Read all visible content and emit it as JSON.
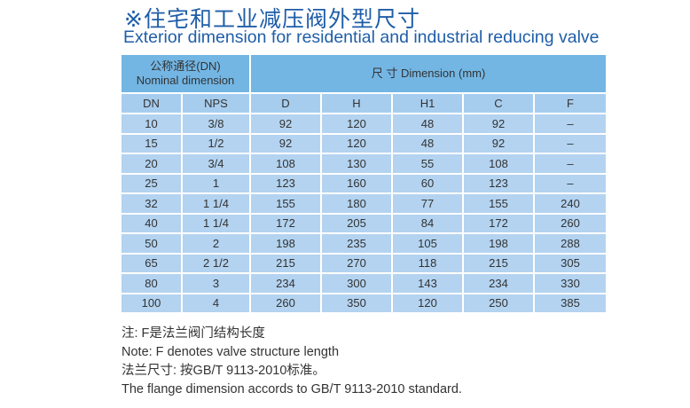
{
  "title": "※住宅和工业减压阀外型尺寸",
  "subtitle": "Exterior dimension for residential and industrial reducing valve",
  "table": {
    "group_nominal_cn": "公称通径(DN)",
    "group_nominal_en": "Nominal dimension",
    "group_dimension": "尺 寸 Dimension  (mm)",
    "columns": [
      "DN",
      "NPS",
      "D",
      "H",
      "H1",
      "C",
      "F"
    ],
    "rows": [
      [
        "10",
        "3/8",
        "92",
        "120",
        "48",
        "92",
        "–"
      ],
      [
        "15",
        "1/2",
        "92",
        "120",
        "48",
        "92",
        "–"
      ],
      [
        "20",
        "3/4",
        "108",
        "130",
        "55",
        "108",
        "–"
      ],
      [
        "25",
        "1",
        "123",
        "160",
        "60",
        "123",
        "–"
      ],
      [
        "32",
        "1 1/4",
        "155",
        "180",
        "77",
        "155",
        "240"
      ],
      [
        "40",
        "1 1/4",
        "172",
        "205",
        "84",
        "172",
        "260"
      ],
      [
        "50",
        "2",
        "198",
        "235",
        "105",
        "198",
        "288"
      ],
      [
        "65",
        "2 1/2",
        "215",
        "270",
        "118",
        "215",
        "305"
      ],
      [
        "80",
        "3",
        "234",
        "300",
        "143",
        "234",
        "330"
      ],
      [
        "100",
        "4",
        "260",
        "350",
        "120",
        "250",
        "385"
      ]
    ]
  },
  "notes": [
    "注: F是法兰阀门结构长度",
    "Note: F denotes valve structure length",
    "法兰尺寸: 按GB/T 9113-2010标准。",
    "The flange dimension accords to GB/T 9113-2010 standard."
  ]
}
